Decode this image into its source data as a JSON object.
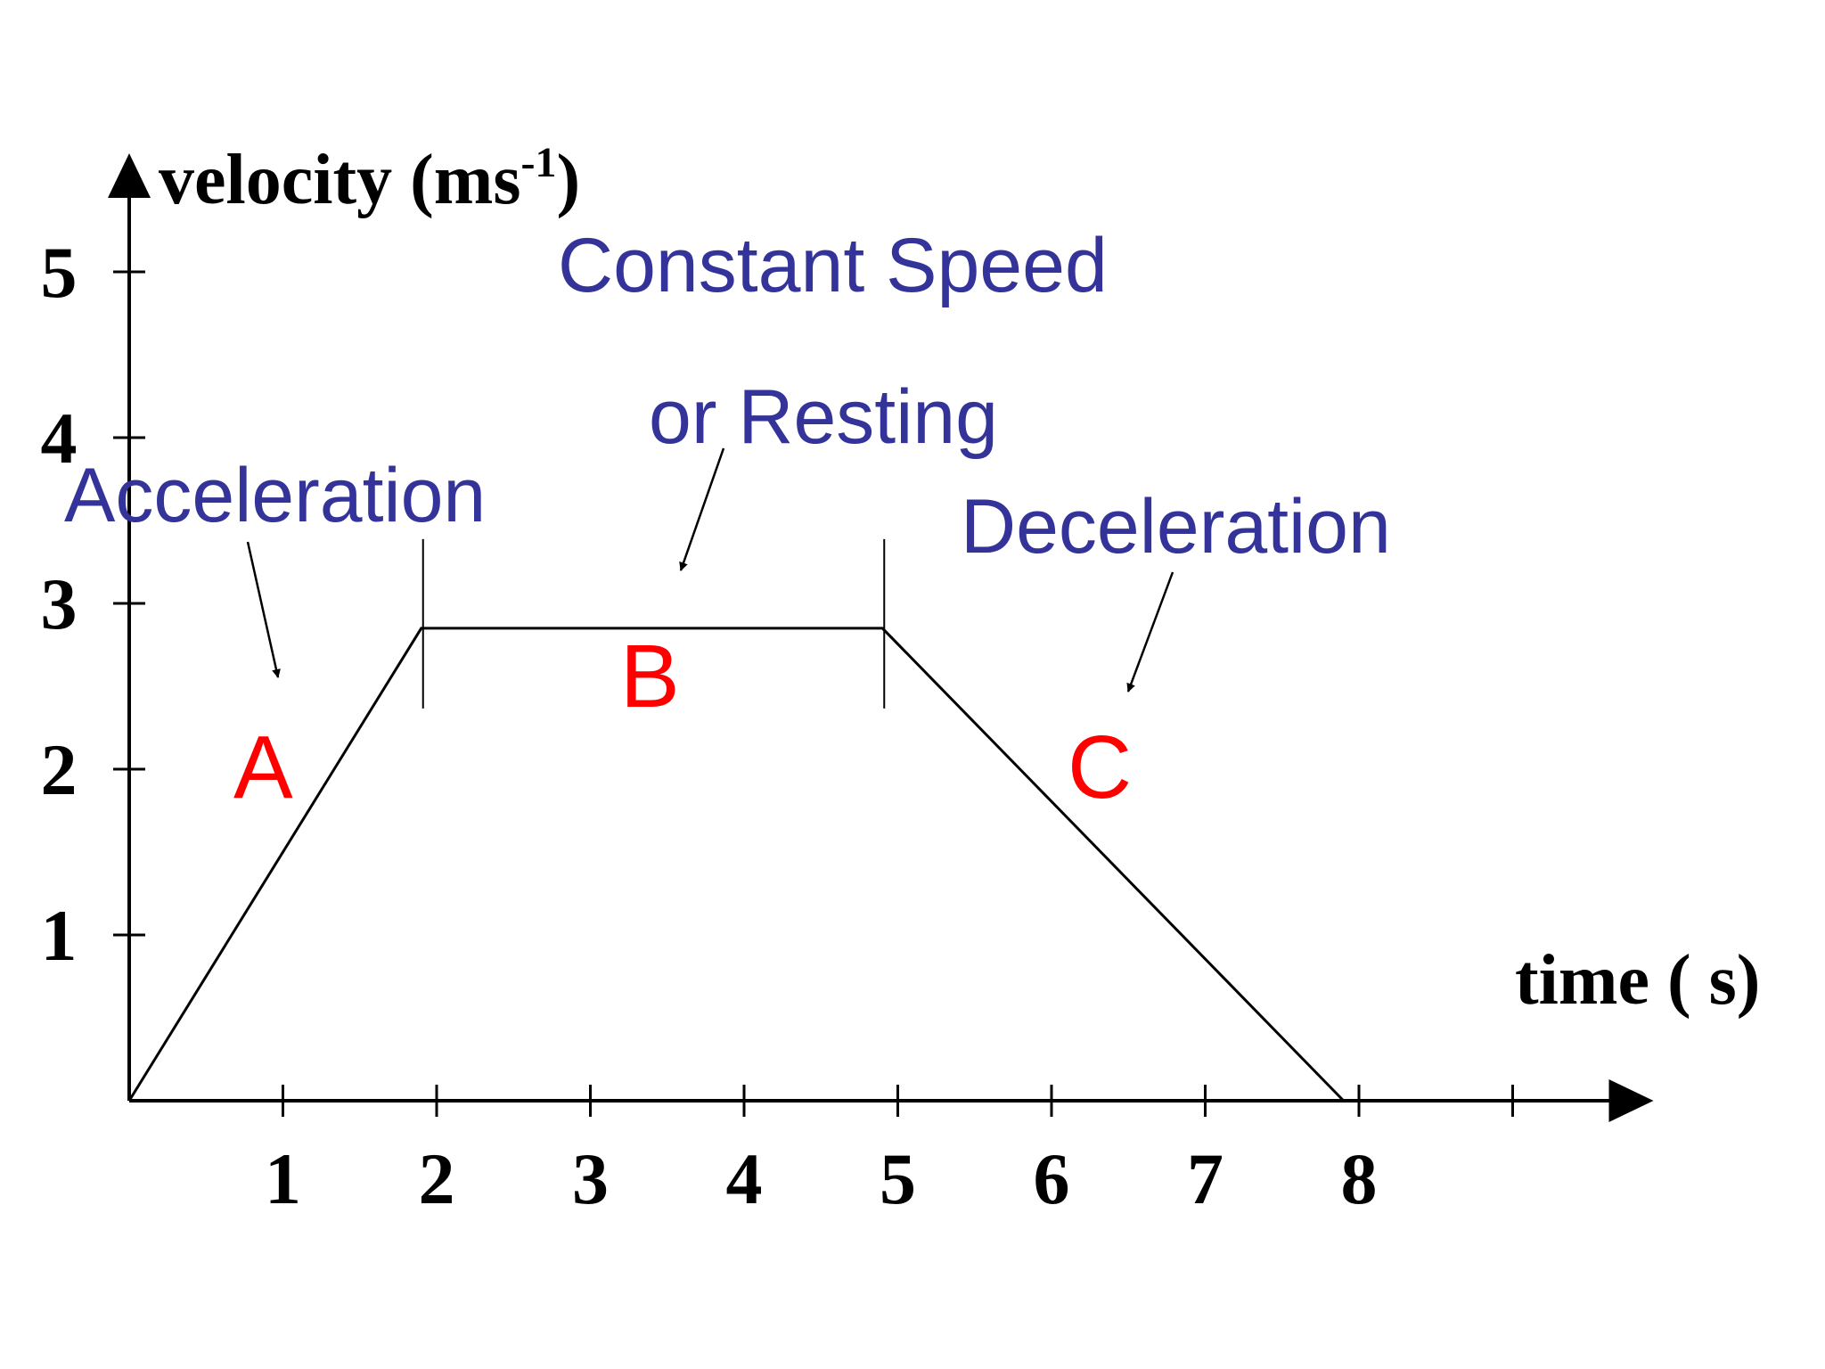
{
  "chart_data": {
    "type": "line",
    "xlabel": "time ( s)",
    "ylabel": "velocity (ms-1)",
    "ylabel_main": "velocity (ms",
    "ylabel_sup": "-1",
    "ylabel_close": ")",
    "x_ticks": [
      "1",
      "2",
      "3",
      "4",
      "5",
      "6",
      "7",
      "8"
    ],
    "y_ticks": [
      "1",
      "2",
      "3",
      "4",
      "5"
    ],
    "xlim": [
      0,
      9.8
    ],
    "ylim": [
      0,
      5.5
    ],
    "grid": false,
    "colors": {
      "axis": "#000000",
      "annotation": "#333399",
      "segment_label": "#ff0000"
    },
    "series": [
      {
        "x": [
          0,
          1.9,
          4.9,
          7.9
        ],
        "y": [
          0,
          2.85,
          2.85,
          0
        ]
      }
    ],
    "phase_markers": [
      1.9,
      4.9
    ],
    "annotations": {
      "acceleration": "Acceleration",
      "constant_speed_line1": "Constant Speed",
      "constant_speed_line2": "or Resting",
      "deceleration": "Deceleration"
    },
    "segment_labels": {
      "a": "A",
      "b": "B",
      "c": "C"
    }
  }
}
